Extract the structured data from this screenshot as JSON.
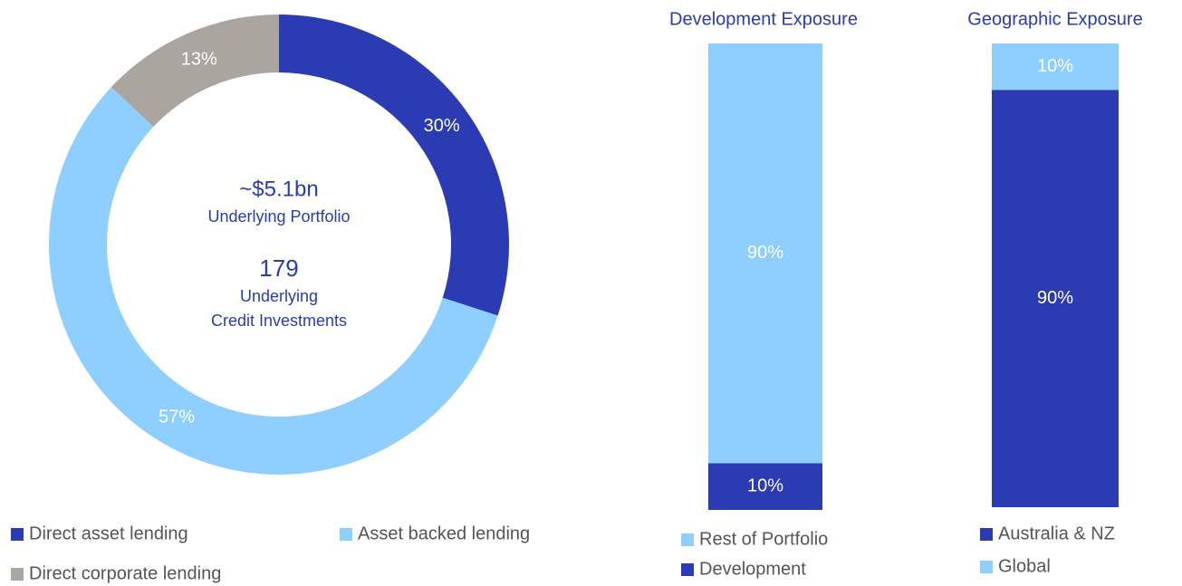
{
  "chart_data": [
    {
      "type": "donut",
      "categories": [
        "Direct asset lending",
        "Asset backed lending",
        "Direct corporate lending"
      ],
      "values": [
        30,
        57,
        13
      ],
      "value_labels": [
        "30%",
        "57%",
        "13%"
      ],
      "colors": [
        "#2b3bb3",
        "#8ecfff",
        "#aaa59f"
      ],
      "center_text": [
        "~$5.1bn",
        "Underlying Portfolio",
        "179",
        "Underlying",
        "Credit Investments"
      ]
    },
    {
      "type": "stacked_bar",
      "title": "Development Exposure",
      "ylim": [
        0,
        100
      ],
      "series": [
        {
          "name": "Development",
          "color": "#2b3bb3",
          "values": [
            10
          ],
          "value_labels": [
            "10%"
          ]
        },
        {
          "name": "Rest of Portfolio",
          "color": "#8ecfff",
          "values": [
            90
          ],
          "value_labels": [
            "90%"
          ]
        }
      ]
    },
    {
      "type": "stacked_bar",
      "title": "Geographic Exposure",
      "ylim": [
        0,
        100
      ],
      "series": [
        {
          "name": "Australia & NZ",
          "color": "#2b3bb3",
          "values": [
            90
          ],
          "value_labels": [
            "90%"
          ]
        },
        {
          "name": "Global",
          "color": "#8ecfff",
          "values": [
            10
          ],
          "value_labels": [
            "10%"
          ]
        }
      ]
    }
  ]
}
